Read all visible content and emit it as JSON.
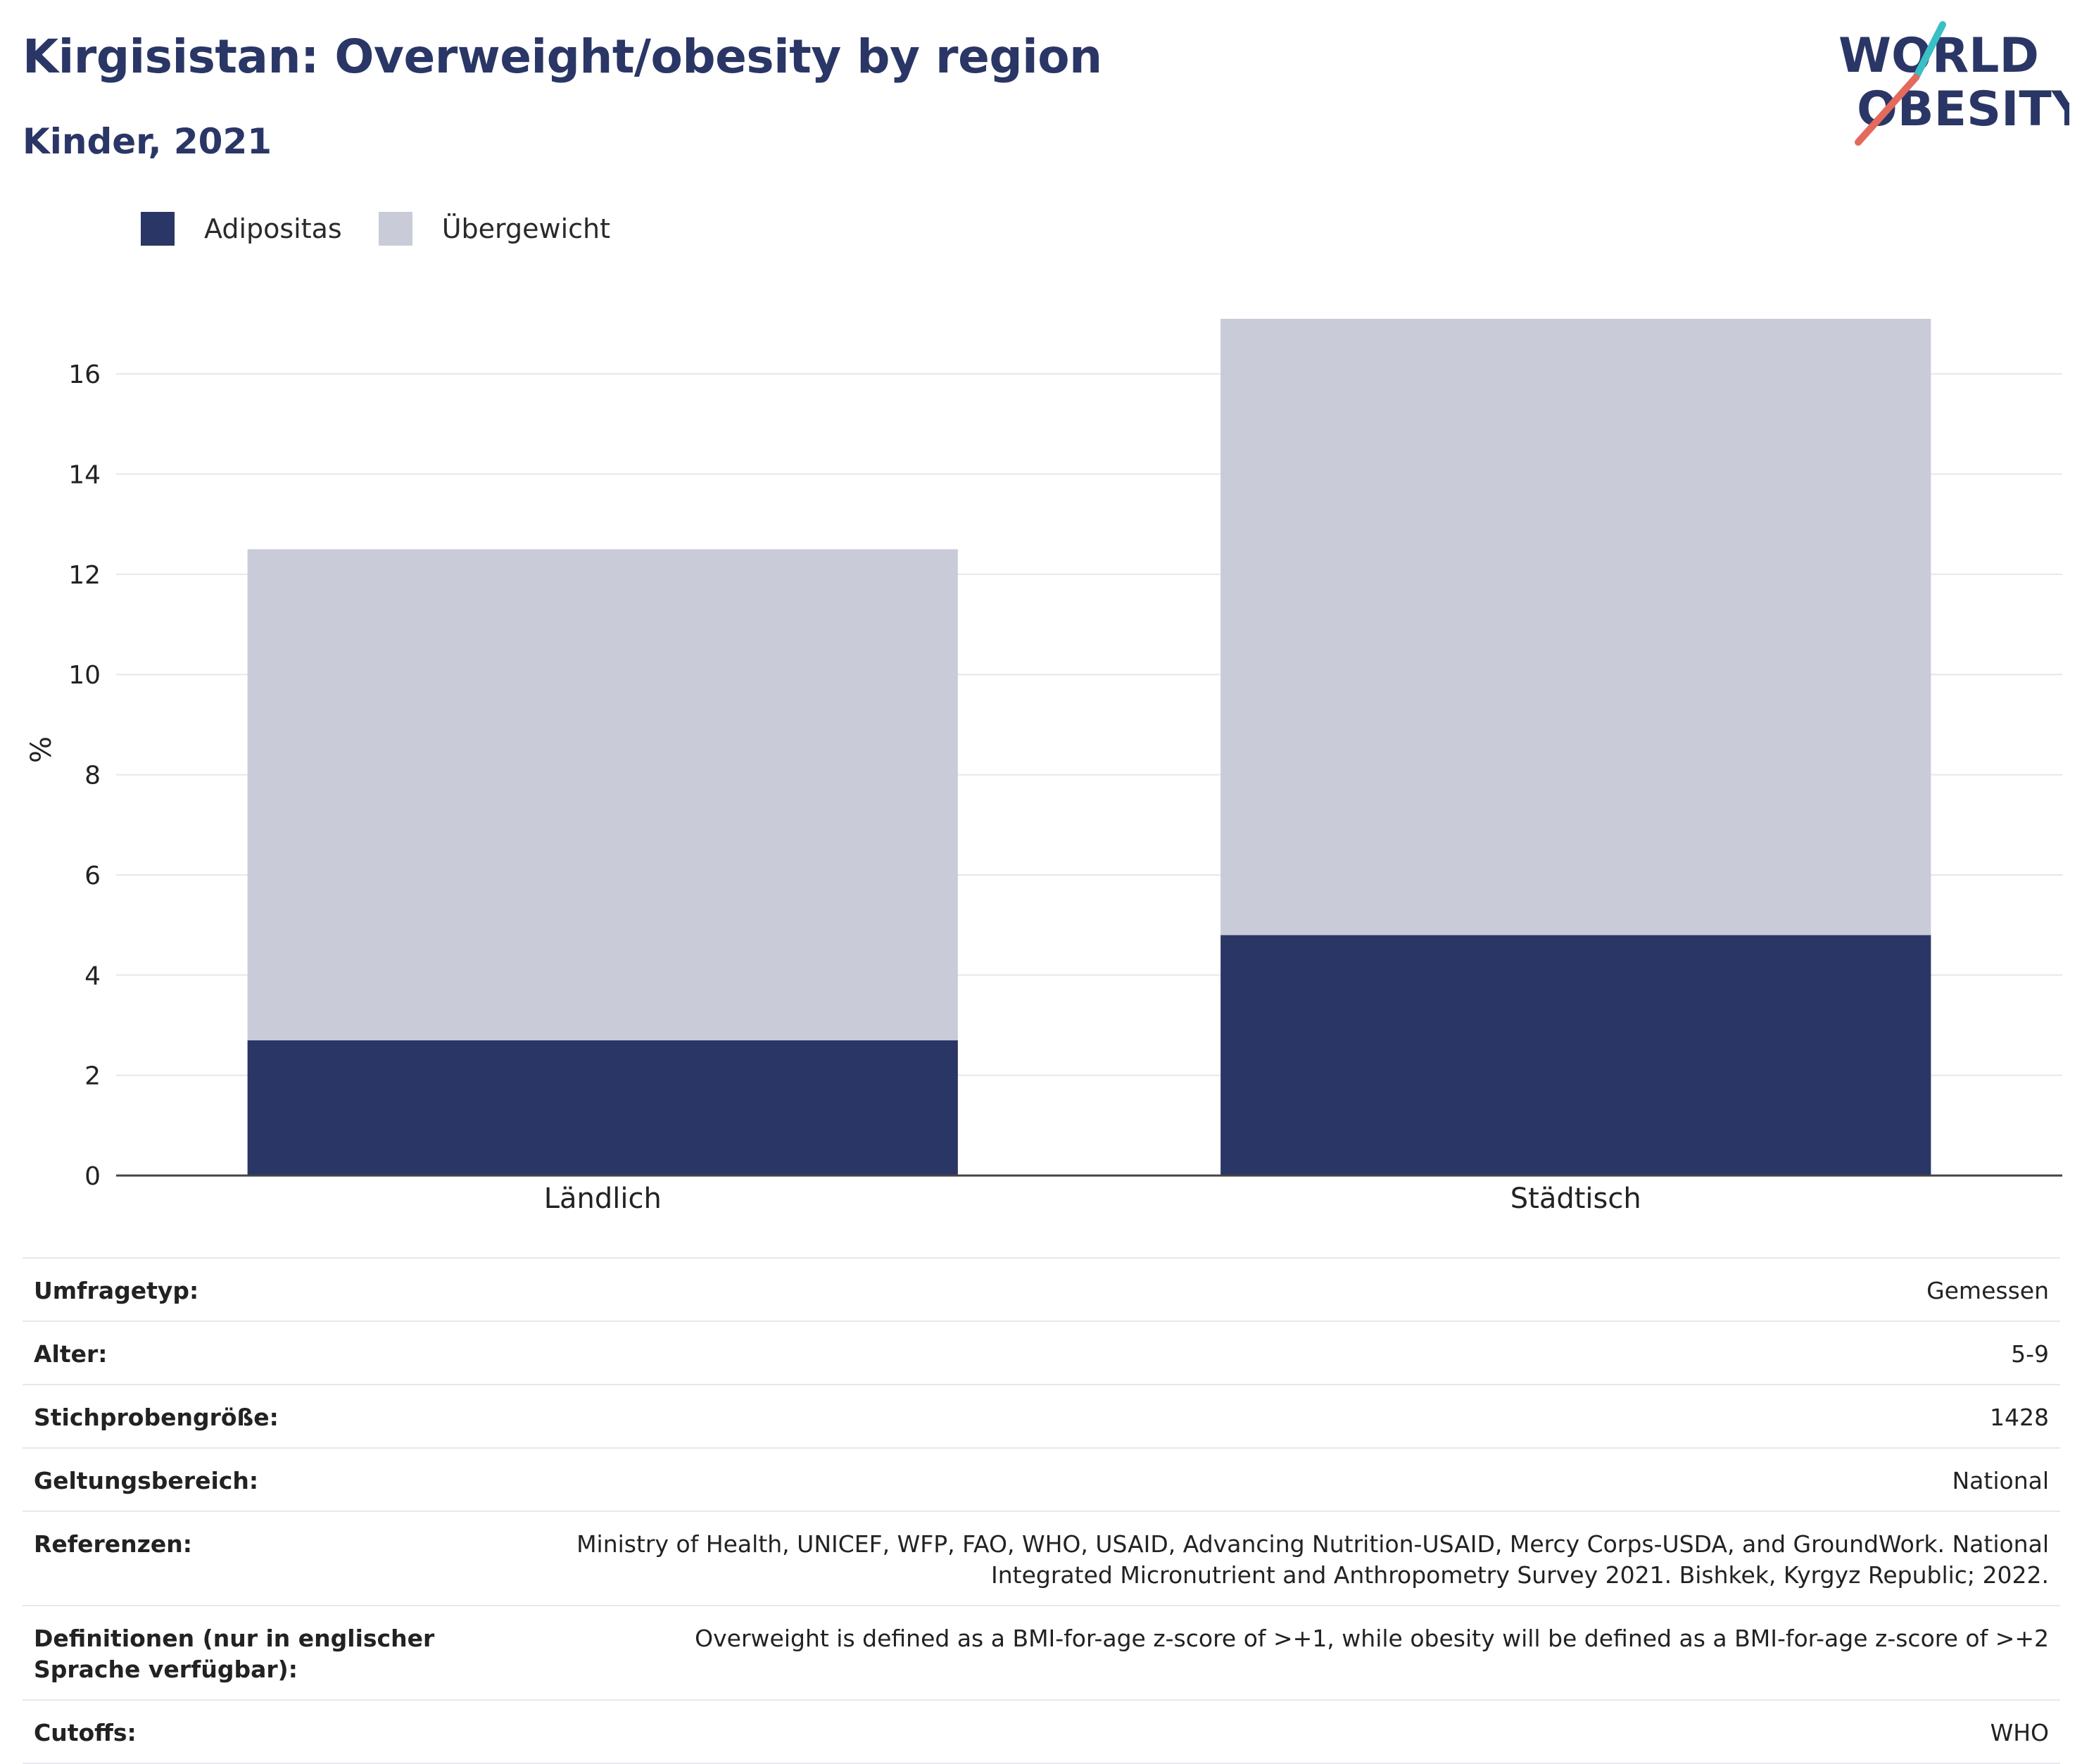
{
  "header": {
    "title": "Kirgisistan: Overweight/obesity by region",
    "subtitle": "Kinder, 2021"
  },
  "logo": {
    "line1": "WORLD",
    "line2": "OBESITY",
    "colors": {
      "text": "#2a3665",
      "accent_teal": "#3bbfc6",
      "accent_red": "#e36a5d"
    }
  },
  "colors": {
    "obesity": "#2a3665",
    "overweight": "#c9ccd8",
    "grid": "#e6e6ec",
    "axis": "#444444"
  },
  "chart_data": {
    "type": "bar",
    "stacked": true,
    "categories": [
      "Ländlich",
      "Städtisch"
    ],
    "series": [
      {
        "name": "Adipositas",
        "values": [
          2.7,
          4.8
        ]
      },
      {
        "name": "Übergewicht",
        "values": [
          9.8,
          12.3
        ]
      }
    ],
    "ylabel": "%",
    "ylim": [
      0,
      17
    ],
    "yticks": [
      0,
      2,
      4,
      6,
      8,
      10,
      12,
      14,
      16
    ],
    "grid": true,
    "legend_position": "top-left"
  },
  "meta": [
    {
      "label": "Umfragetyp:",
      "value": "Gemessen"
    },
    {
      "label": "Alter:",
      "value": "5-9"
    },
    {
      "label": "Stichprobengröße:",
      "value": "1428"
    },
    {
      "label": "Geltungsbereich:",
      "value": "National"
    },
    {
      "label": "Referenzen:",
      "value": "Ministry of Health, UNICEF, WFP, FAO, WHO, USAID, Advancing Nutrition-USAID, Mercy Corps-USDA, and GroundWork. National Integrated Micronutrient and Anthropometry Survey 2021. Bishkek, Kyrgyz Republic; 2022."
    },
    {
      "label": "Definitionen (nur in englischer Sprache verfügbar):",
      "value": "Overweight is defined as a BMI-for-age z-score of >+1, while obesity will be defined as a BMI-for-age z-score of >+2"
    },
    {
      "label": "Cutoffs:",
      "value": "WHO"
    }
  ]
}
